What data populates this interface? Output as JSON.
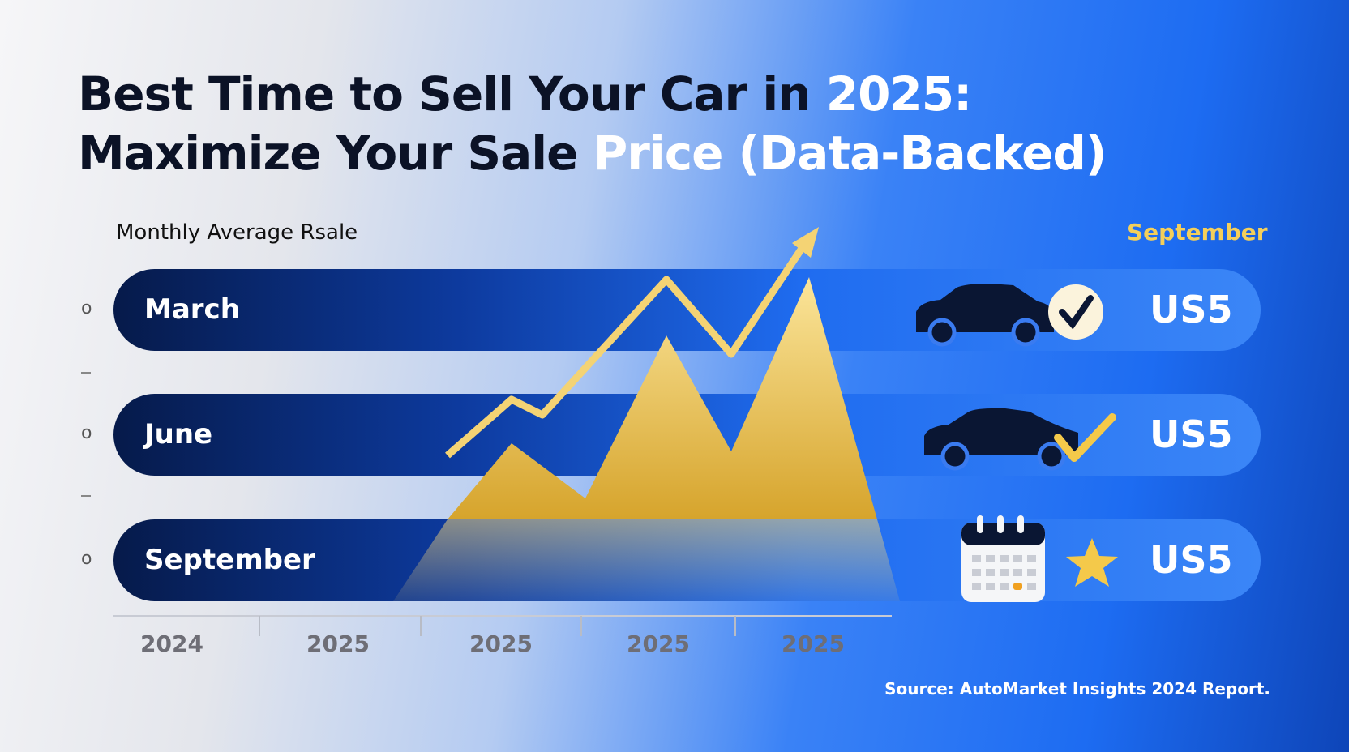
{
  "header": {
    "title": {
      "line1": [
        "Best Time to Sell Your Car in",
        "2025:"
      ],
      "line2": [
        "Maximize Your Sale",
        "Price (Data-Backed)"
      ]
    },
    "subtitle": "Monthly Average Rsale",
    "highlight": "September"
  },
  "rows": [
    {
      "label": "March",
      "value": "US5"
    },
    {
      "label": "June",
      "value": "US5"
    },
    {
      "label": "September",
      "value": "US5"
    }
  ],
  "y_axis": {
    "labels": [
      "o",
      "o",
      "o"
    ]
  },
  "x_axis": {
    "labels": [
      "2024",
      "2025",
      "2025",
      "2025",
      "2025"
    ]
  },
  "source": "Source: AutoMarket Insights 2024 Report."
}
